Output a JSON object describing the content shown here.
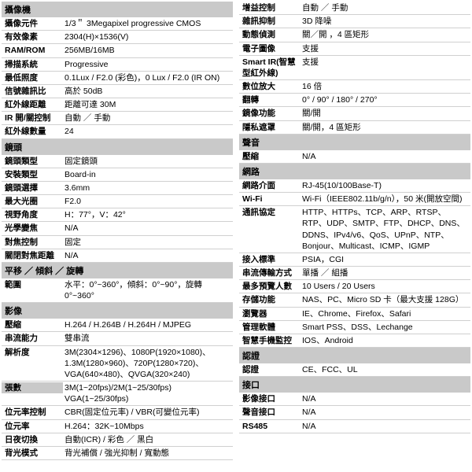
{
  "left": [
    {
      "type": "header",
      "text": "攝像機"
    },
    {
      "type": "row",
      "label": "攝像元件",
      "value": "1/3＂ 3Megapixel progressive CMOS"
    },
    {
      "type": "row",
      "label": "有效像素",
      "value": "2304(H)×1536(V)"
    },
    {
      "type": "row",
      "label": "RAM/ROM",
      "value": "256MB/16MB"
    },
    {
      "type": "row",
      "label": "掃描系統",
      "value": "Progressive"
    },
    {
      "type": "row",
      "label": "最低照度",
      "value": "0.1Lux / F2.0 (彩色)，0 Lux / F2.0 (IR ON)"
    },
    {
      "type": "row",
      "label": "信號雜訊比",
      "value": "高於 50dB"
    },
    {
      "type": "row",
      "label": "紅外線距離",
      "value": "距離可達 30M"
    },
    {
      "type": "row",
      "label": "IR 開/關控制",
      "value": "自動 ／ 手動"
    },
    {
      "type": "row",
      "label": "紅外線數量",
      "value": "24"
    },
    {
      "type": "header",
      "text": "鏡頭"
    },
    {
      "type": "row",
      "label": "鏡頭類型",
      "value": "固定鏡頭"
    },
    {
      "type": "row",
      "label": "安裝類型",
      "value": "Board-in"
    },
    {
      "type": "row",
      "label": "鏡頭選擇",
      "value": "3.6mm"
    },
    {
      "type": "row",
      "label": "最大光圈",
      "value": "F2.0"
    },
    {
      "type": "row",
      "label": "視野角度",
      "value": "H：77°，V：42°"
    },
    {
      "type": "row",
      "label": "光學變焦",
      "value": "N/A"
    },
    {
      "type": "row",
      "label": "對焦控制",
      "value": "固定"
    },
    {
      "type": "row",
      "label": "關閉對焦距離",
      "value": "N/A"
    },
    {
      "type": "header",
      "text": "平移 ／ 傾斜 ／ 旋轉"
    },
    {
      "type": "row",
      "label": "範圍",
      "value": "水平：0°~360°，傾斜：0°~90°，旋轉 0°~360°"
    },
    {
      "type": "header",
      "text": "影像"
    },
    {
      "type": "row",
      "label": "壓縮",
      "value": "H.264 / H.264B / H.264H / MJPEG"
    },
    {
      "type": "row",
      "label": "串流能力",
      "value": "雙串流"
    },
    {
      "type": "row",
      "label": "解析度",
      "value": "3M(2304×1296)、1080P(1920×1080)、1.3M(1280×960)、720P(1280×720)、VGA(640×480)、QVGA(320×240)"
    },
    {
      "type": "row",
      "label": "張數",
      "value": "3M(1~20fps)/2M(1~25/30fps) VGA(1~25/30fps)",
      "section": true
    },
    {
      "type": "row",
      "label": "位元率控制",
      "value": "CBR(固定位元率) / VBR(可變位元率)"
    },
    {
      "type": "row",
      "label": "位元率",
      "value": "H.264：32K~10Mbps"
    },
    {
      "type": "row",
      "label": "日夜切換",
      "value": "自動(ICR) /  彩色 ／ 黑白"
    },
    {
      "type": "row",
      "label": "背光模式",
      "value": "背光補償 / 強光抑制 / 寬動態"
    }
  ],
  "right": [
    {
      "type": "row",
      "label": "增益控制",
      "value": "自動 ／ 手動"
    },
    {
      "type": "row",
      "label": "雜訊抑制",
      "value": "3D 降噪"
    },
    {
      "type": "row",
      "label": "動態偵測",
      "value": "關／開 ，4 區矩形"
    },
    {
      "type": "row",
      "label": "電子圖像",
      "value": "支援"
    },
    {
      "type": "row",
      "label": "Smart IR(智慧型紅外線)",
      "value": "支援"
    },
    {
      "type": "row",
      "label": "數位放大",
      "value": "16 倍"
    },
    {
      "type": "row",
      "label": "翻轉",
      "value": "0° / 90° / 180° / 270°"
    },
    {
      "type": "row",
      "label": "鏡像功能",
      "value": "關/開"
    },
    {
      "type": "row",
      "label": "隱私遮罩",
      "value": "關/開，4 區矩形"
    },
    {
      "type": "header",
      "text": "聲音"
    },
    {
      "type": "row",
      "label": "壓縮",
      "value": "N/A"
    },
    {
      "type": "header",
      "text": "網路"
    },
    {
      "type": "row",
      "label": "網路介面",
      "value": "RJ-45(10/100Base-T)"
    },
    {
      "type": "row",
      "label": "Wi-Fi",
      "value": "Wi-Fi（IEEE802.11b/g/n），50 米(開放空間)"
    },
    {
      "type": "row",
      "label": "通訊協定",
      "value": "HTTP、HTTPs、TCP、ARP、RTSP、RTP、UDP、SMTP、FTP、DHCP、DNS、DDNS、IPv4/v6、QoS、UPnP、NTP、Bonjour、Multicast、ICMP、IGMP"
    },
    {
      "type": "row",
      "label": "接入標準",
      "value": "PSIA，CGI"
    },
    {
      "type": "row",
      "label": "串流傳輸方式",
      "value": "單播 ／ 組播"
    },
    {
      "type": "row",
      "label": "最多預覽人數",
      "value": "10 Users / 20 Users"
    },
    {
      "type": "row",
      "label": "存儲功能",
      "value": "NAS、PC、Micro SD 卡（最大支援 128G）"
    },
    {
      "type": "row",
      "label": "瀏覽器",
      "value": "IE、Chrome、Firefox、Safari"
    },
    {
      "type": "row",
      "label": "管理軟體",
      "value": "Smart PSS、DSS、Lechange"
    },
    {
      "type": "row",
      "label": "智慧手機監控",
      "value": "IOS、Android"
    },
    {
      "type": "header",
      "text": "認證"
    },
    {
      "type": "row",
      "label": "認證",
      "value": "CE、FCC、UL"
    },
    {
      "type": "header",
      "text": "接口"
    },
    {
      "type": "row",
      "label": "影像接口",
      "value": "N/A"
    },
    {
      "type": "row",
      "label": "聲音接口",
      "value": "N/A"
    },
    {
      "type": "row",
      "label": "RS485",
      "value": "N/A"
    }
  ]
}
